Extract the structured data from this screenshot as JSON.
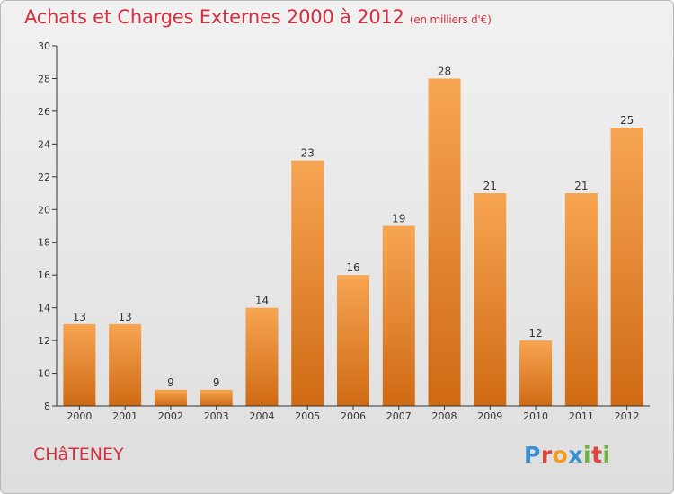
{
  "header": {
    "title": "Achats et Charges Externes 2000 à 2012",
    "subtitle": "(en milliers d'€)"
  },
  "footer": {
    "commune": "CHâTENEY",
    "logo": {
      "letters": [
        "P",
        "r",
        "o",
        "x",
        "i",
        "t",
        "i"
      ],
      "colors": [
        "#3a8fd0",
        "#e0433a",
        "#f29b1f",
        "#3a8fd0",
        "#6cb33f",
        "#e0433a",
        "#6cb33f"
      ]
    }
  },
  "chart_data": {
    "type": "bar",
    "categories": [
      "2000",
      "2001",
      "2002",
      "2003",
      "2004",
      "2005",
      "2006",
      "2007",
      "2008",
      "2009",
      "2010",
      "2011",
      "2012"
    ],
    "values": [
      13,
      13,
      9,
      9,
      14,
      23,
      16,
      19,
      28,
      21,
      12,
      21,
      25
    ],
    "ylim": [
      8,
      30
    ],
    "yticks": [
      8,
      10,
      12,
      14,
      16,
      18,
      20,
      22,
      24,
      26,
      28,
      30
    ],
    "grid": false,
    "bar_color_top": "#f7a552",
    "bar_color_bottom": "#d06a14",
    "title_color": "#d4303f"
  }
}
